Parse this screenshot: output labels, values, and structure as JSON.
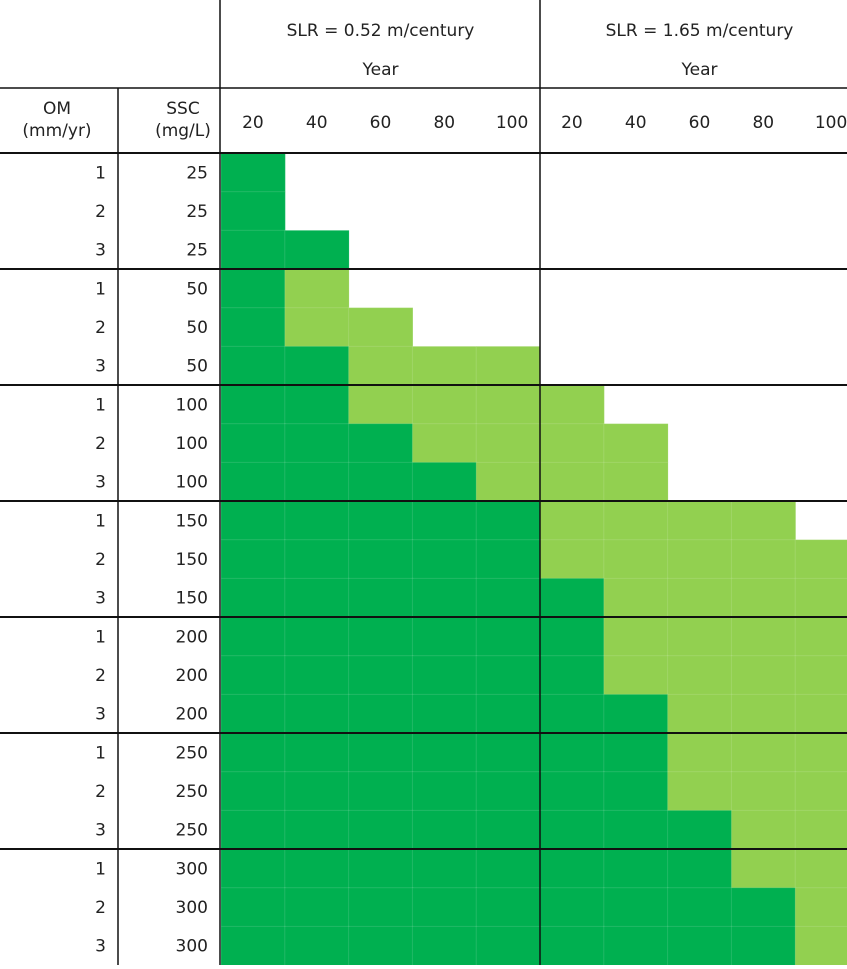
{
  "groups": [
    {
      "title": "SLR = 0.52 m/century",
      "subtitle": "Year",
      "years": [
        "20",
        "40",
        "60",
        "80",
        "100"
      ]
    },
    {
      "title": "SLR = 1.65 m/century",
      "subtitle": "Year",
      "years": [
        "20",
        "40",
        "60",
        "80",
        "100"
      ]
    }
  ],
  "row_headers": {
    "om": [
      "OM",
      "(mm/yr)"
    ],
    "ssc": [
      "SSC",
      "(mg/L)"
    ]
  },
  "cell_colors": [
    "#ffffff",
    "#00b050",
    "#92d050"
  ],
  "rows": [
    {
      "om": "1",
      "ssc": "25",
      "cells": [
        1,
        0,
        0,
        0,
        0,
        0,
        0,
        0,
        0,
        0
      ]
    },
    {
      "om": "2",
      "ssc": "25",
      "cells": [
        1,
        0,
        0,
        0,
        0,
        0,
        0,
        0,
        0,
        0
      ]
    },
    {
      "om": "3",
      "ssc": "25",
      "cells": [
        1,
        1,
        0,
        0,
        0,
        0,
        0,
        0,
        0,
        0
      ]
    },
    {
      "om": "1",
      "ssc": "50",
      "cells": [
        1,
        2,
        0,
        0,
        0,
        0,
        0,
        0,
        0,
        0
      ]
    },
    {
      "om": "2",
      "ssc": "50",
      "cells": [
        1,
        2,
        2,
        0,
        0,
        0,
        0,
        0,
        0,
        0
      ]
    },
    {
      "om": "3",
      "ssc": "50",
      "cells": [
        1,
        1,
        2,
        2,
        2,
        0,
        0,
        0,
        0,
        0
      ]
    },
    {
      "om": "1",
      "ssc": "100",
      "cells": [
        1,
        1,
        2,
        2,
        2,
        2,
        0,
        0,
        0,
        0
      ]
    },
    {
      "om": "2",
      "ssc": "100",
      "cells": [
        1,
        1,
        1,
        2,
        2,
        2,
        2,
        0,
        0,
        0
      ]
    },
    {
      "om": "3",
      "ssc": "100",
      "cells": [
        1,
        1,
        1,
        1,
        2,
        2,
        2,
        0,
        0,
        0
      ]
    },
    {
      "om": "1",
      "ssc": "150",
      "cells": [
        1,
        1,
        1,
        1,
        1,
        2,
        2,
        2,
        2,
        0
      ]
    },
    {
      "om": "2",
      "ssc": "150",
      "cells": [
        1,
        1,
        1,
        1,
        1,
        2,
        2,
        2,
        2,
        2
      ]
    },
    {
      "om": "3",
      "ssc": "150",
      "cells": [
        1,
        1,
        1,
        1,
        1,
        1,
        2,
        2,
        2,
        2
      ]
    },
    {
      "om": "1",
      "ssc": "200",
      "cells": [
        1,
        1,
        1,
        1,
        1,
        1,
        2,
        2,
        2,
        2
      ]
    },
    {
      "om": "2",
      "ssc": "200",
      "cells": [
        1,
        1,
        1,
        1,
        1,
        1,
        2,
        2,
        2,
        2
      ]
    },
    {
      "om": "3",
      "ssc": "200",
      "cells": [
        1,
        1,
        1,
        1,
        1,
        1,
        1,
        2,
        2,
        2
      ]
    },
    {
      "om": "1",
      "ssc": "250",
      "cells": [
        1,
        1,
        1,
        1,
        1,
        1,
        1,
        2,
        2,
        2
      ]
    },
    {
      "om": "2",
      "ssc": "250",
      "cells": [
        1,
        1,
        1,
        1,
        1,
        1,
        1,
        2,
        2,
        2
      ]
    },
    {
      "om": "3",
      "ssc": "250",
      "cells": [
        1,
        1,
        1,
        1,
        1,
        1,
        1,
        1,
        2,
        2
      ]
    },
    {
      "om": "1",
      "ssc": "300",
      "cells": [
        1,
        1,
        1,
        1,
        1,
        1,
        1,
        1,
        2,
        2
      ]
    },
    {
      "om": "2",
      "ssc": "300",
      "cells": [
        1,
        1,
        1,
        1,
        1,
        1,
        1,
        1,
        1,
        2
      ]
    },
    {
      "om": "3",
      "ssc": "300",
      "cells": [
        1,
        1,
        1,
        1,
        1,
        1,
        1,
        1,
        1,
        2
      ]
    }
  ]
}
